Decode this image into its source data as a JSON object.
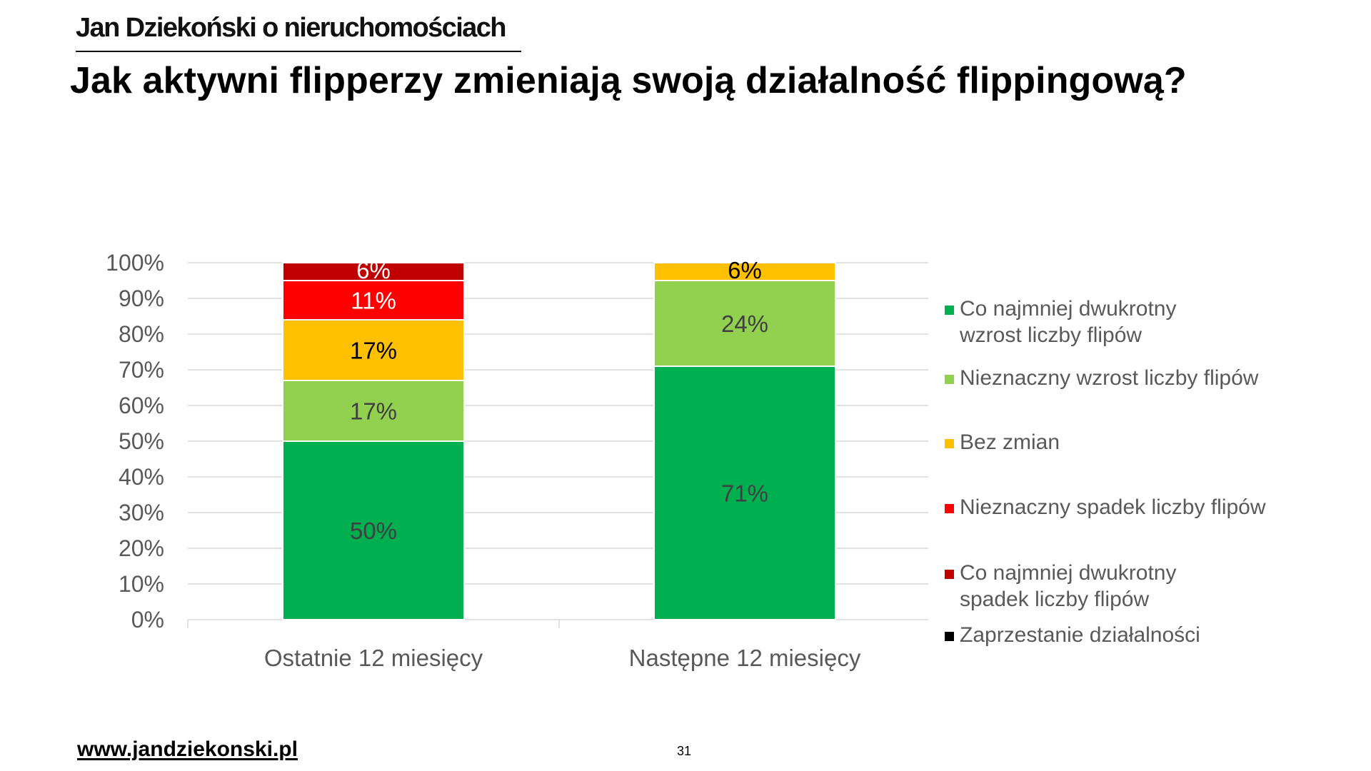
{
  "header": {
    "brand": "Jan Dziekoński o nieruchomościach",
    "title": "Jak aktywni flipperzy zmieniają swoją działalność flippingową?"
  },
  "footer": {
    "url": "www.jandziekonski.pl",
    "page_number": "31"
  },
  "chart_data": {
    "type": "bar",
    "stacked": true,
    "orientation": "vertical",
    "title": "",
    "xlabel": "",
    "ylabel": "",
    "ylim": [
      0,
      100
    ],
    "y_ticks": [
      0,
      10,
      20,
      30,
      40,
      50,
      60,
      70,
      80,
      90,
      100
    ],
    "y_tick_format": "percent",
    "grid": true,
    "legend_position": "right",
    "categories": [
      "Ostatnie 12 miesięcy",
      "Następne 12 miesięcy"
    ],
    "series": [
      {
        "name": "Co najmniej dwukrotny wzrost liczby flipów",
        "color": "#00B050",
        "values": [
          50,
          71
        ],
        "label_color": "#404040"
      },
      {
        "name": "Nieznaczny wzrost liczby flipów",
        "color": "#92D050",
        "values": [
          17,
          24
        ],
        "label_color": "#404040"
      },
      {
        "name": "Bez zmian",
        "color": "#FFC000",
        "values": [
          17,
          6
        ],
        "label_color": "#000000"
      },
      {
        "name": "Nieznaczny spadek liczby flipów",
        "color": "#FF0000",
        "values": [
          11,
          0
        ],
        "label_color": "#FFFFFF"
      },
      {
        "name": "Co najmniej dwukrotny spadek liczby flipów",
        "color": "#C00000",
        "values": [
          6,
          0
        ],
        "label_color": "#FFFFFF"
      },
      {
        "name": "Zaprzestanie działalności",
        "color": "#000000",
        "values": [
          0,
          0
        ],
        "label_color": "#FFFFFF"
      }
    ]
  }
}
